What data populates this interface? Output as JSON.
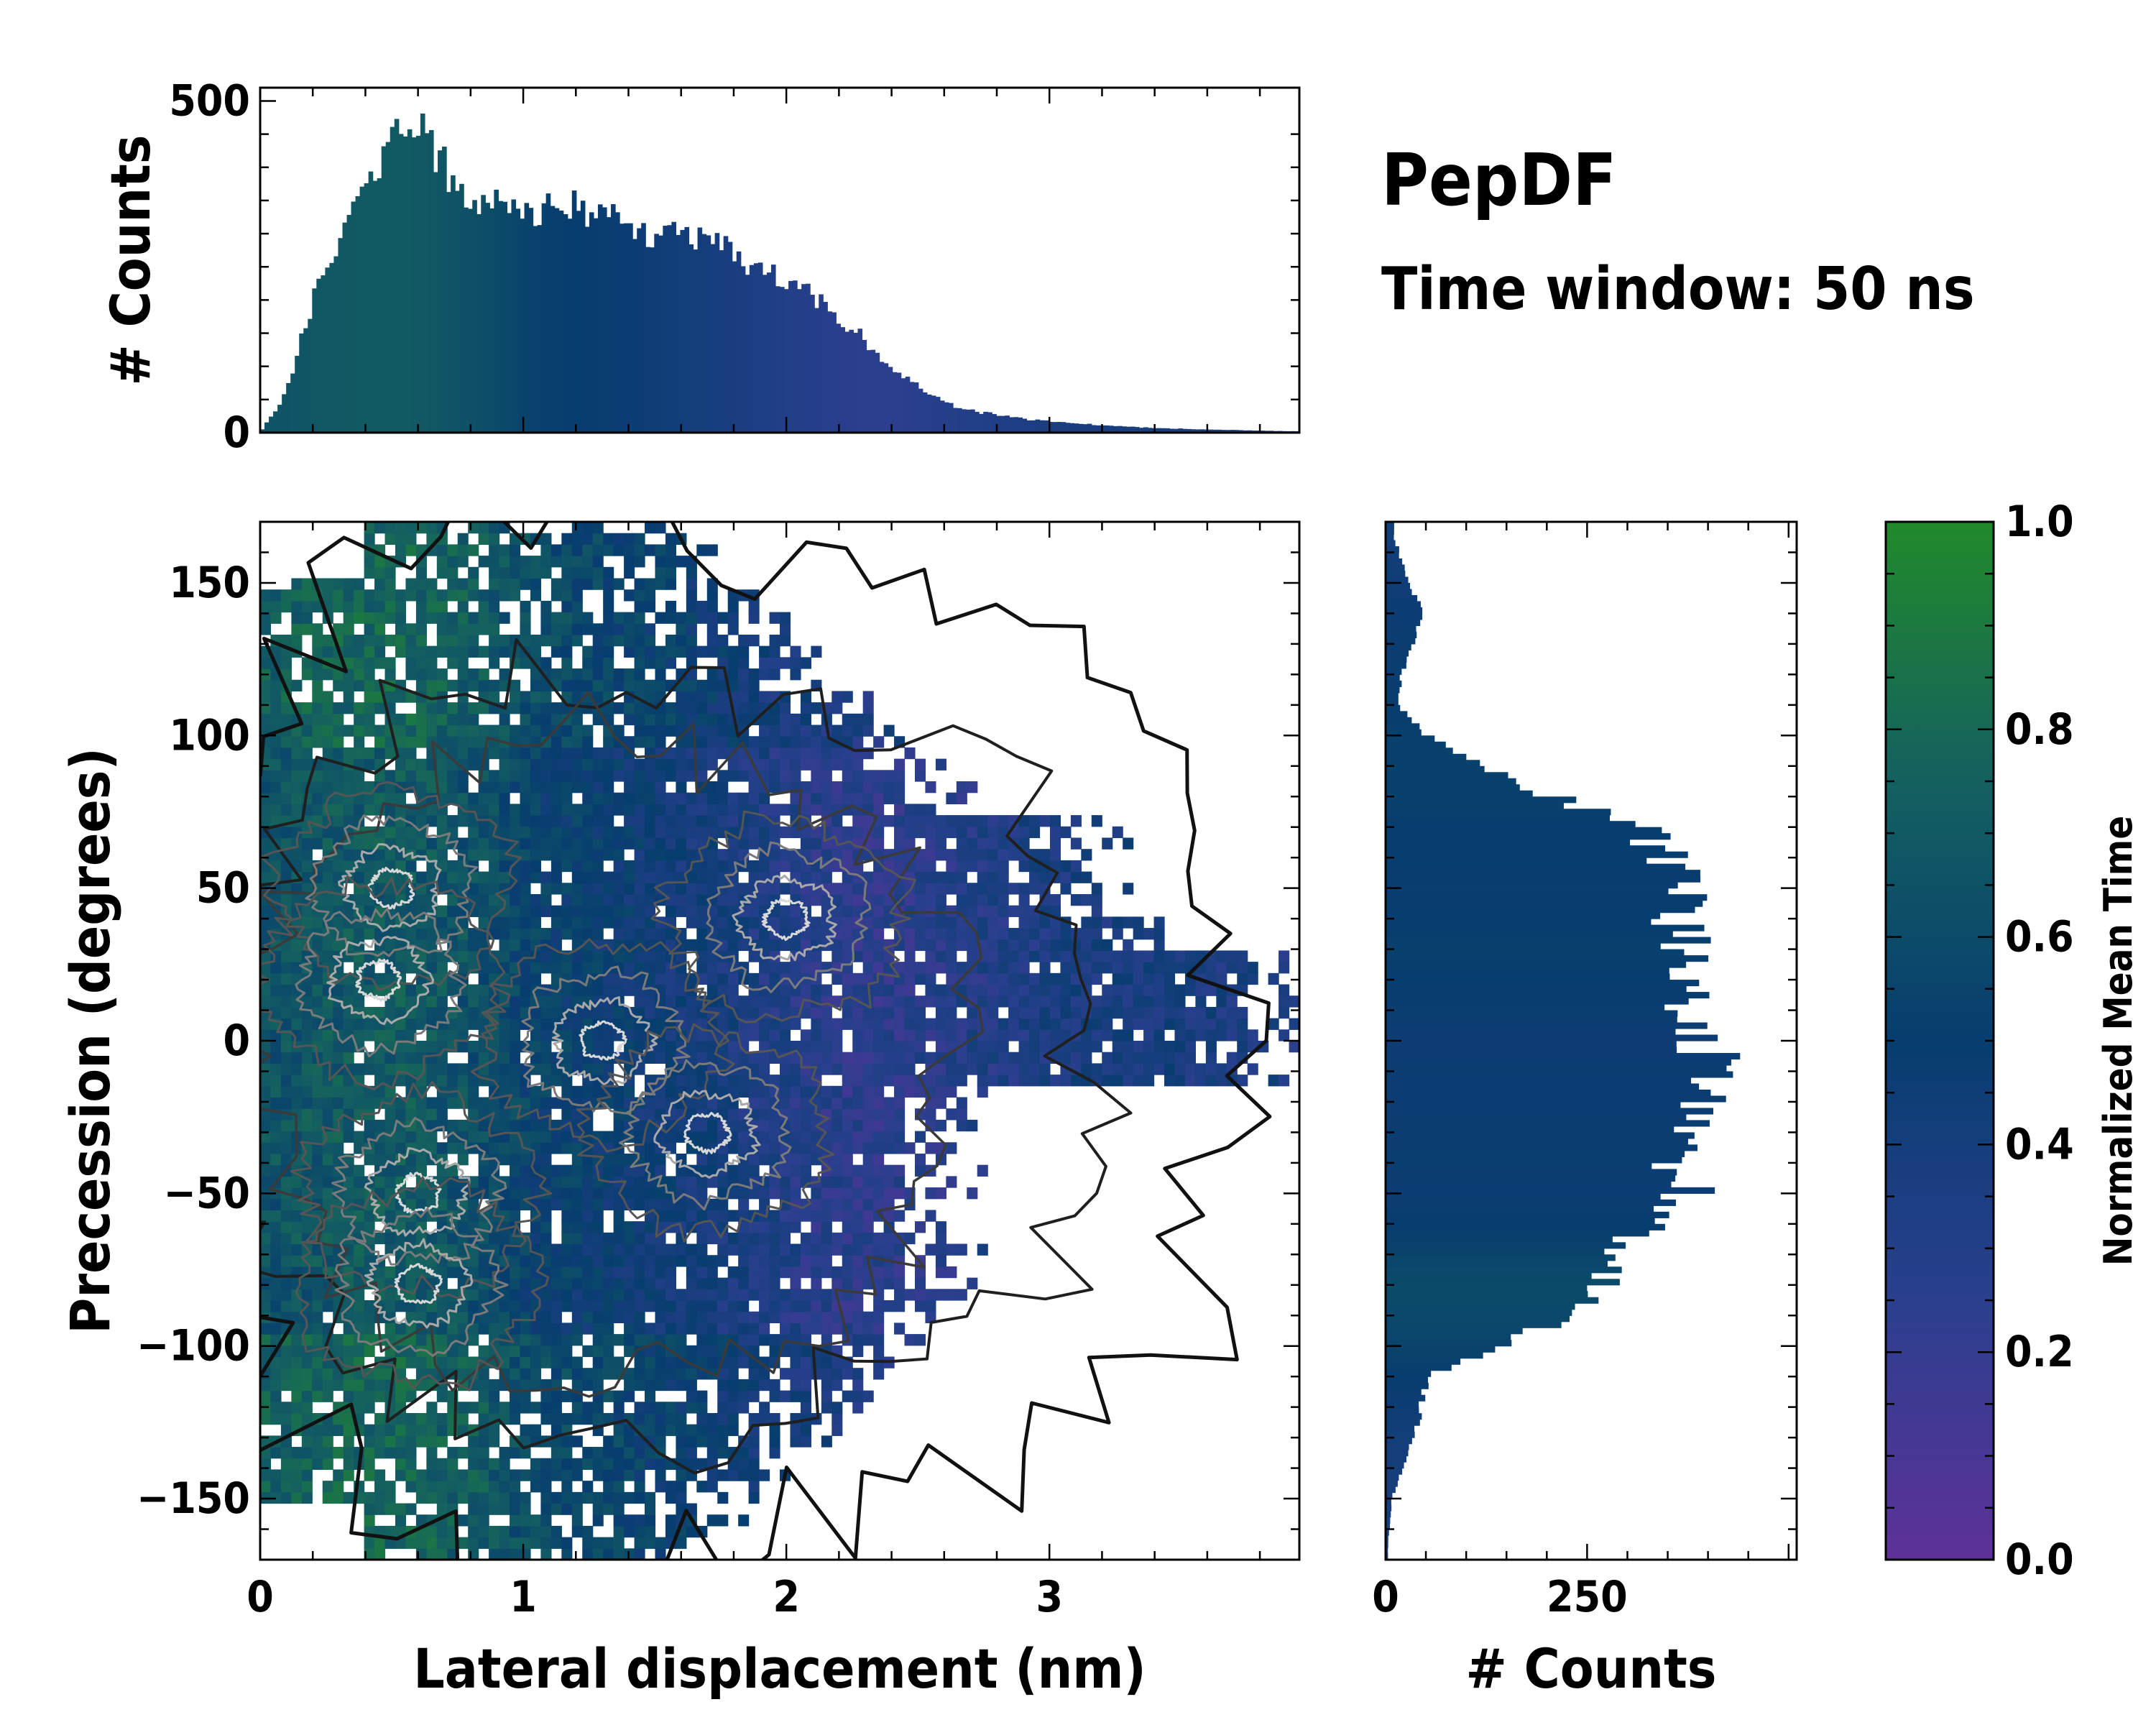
{
  "title": "PepDF",
  "subtitle": "Time window: 50 ns",
  "chart_data": [
    {
      "type": "bar",
      "name": "top-histogram",
      "ylabel": "# Counts",
      "xlim": [
        0,
        3.95
      ],
      "ylim": [
        0,
        520
      ],
      "yticks": [
        0,
        500
      ],
      "color_metric": "Normalized Mean Time",
      "x": [
        0.0,
        0.1,
        0.2,
        0.3,
        0.4,
        0.5,
        0.55,
        0.6,
        0.7,
        0.8,
        0.9,
        1.0,
        1.1,
        1.2,
        1.3,
        1.4,
        1.5,
        1.6,
        1.7,
        1.8,
        1.9,
        2.0,
        2.1,
        2.2,
        2.3,
        2.4,
        2.5,
        2.6,
        2.7,
        2.8,
        2.9,
        3.0,
        3.2,
        3.4,
        3.6,
        3.8,
        3.95
      ],
      "values": [
        0,
        60,
        200,
        300,
        380,
        440,
        470,
        455,
        400,
        360,
        345,
        340,
        335,
        340,
        330,
        305,
        290,
        300,
        290,
        270,
        245,
        225,
        205,
        170,
        140,
        100,
        70,
        45,
        33,
        27,
        21,
        17,
        11,
        7,
        5,
        3,
        2
      ],
      "color_values": [
        0.65,
        0.66,
        0.68,
        0.69,
        0.7,
        0.7,
        0.7,
        0.69,
        0.67,
        0.64,
        0.6,
        0.55,
        0.52,
        0.5,
        0.48,
        0.46,
        0.44,
        0.42,
        0.4,
        0.37,
        0.34,
        0.31,
        0.28,
        0.26,
        0.25,
        0.25,
        0.26,
        0.28,
        0.3,
        0.32,
        0.34,
        0.36,
        0.38,
        0.38,
        0.37,
        0.36,
        0.35
      ]
    },
    {
      "type": "heatmap",
      "name": "joint-distribution",
      "xlabel": "Lateral displacement (nm)",
      "ylabel": "Precession (degrees)",
      "xlim": [
        0,
        3.95
      ],
      "ylim": [
        -170,
        170
      ],
      "xticks": [
        0,
        1,
        2,
        3
      ],
      "yticks": [
        150,
        100,
        50,
        0,
        -50,
        -100,
        -150
      ],
      "color_metric": "Normalized Mean Time",
      "density_centers": [
        [
          0.5,
          50
        ],
        [
          0.6,
          -50
        ],
        [
          0.6,
          -80
        ],
        [
          1.3,
          0
        ],
        [
          0.45,
          20
        ],
        [
          1.7,
          -30
        ],
        [
          2.0,
          40
        ]
      ],
      "contours": true
    },
    {
      "type": "bar",
      "orientation": "horizontal",
      "name": "right-histogram",
      "xlabel": "# Counts",
      "xlim": [
        0,
        510
      ],
      "xticks": [
        0,
        250
      ],
      "ylim": [
        -170,
        170
      ],
      "color_metric": "Normalized Mean Time",
      "y": [
        165,
        150,
        140,
        130,
        120,
        110,
        100,
        90,
        80,
        70,
        60,
        50,
        40,
        30,
        20,
        10,
        0,
        -10,
        -20,
        -30,
        -40,
        -50,
        -60,
        -70,
        -80,
        -90,
        -100,
        -110,
        -120,
        -130,
        -140,
        -150,
        -165
      ],
      "values": [
        10,
        30,
        45,
        35,
        20,
        15,
        50,
        120,
        210,
        310,
        350,
        370,
        360,
        380,
        375,
        370,
        390,
        420,
        400,
        360,
        350,
        380,
        320,
        280,
        280,
        230,
        140,
        50,
        45,
        35,
        20,
        8,
        3
      ],
      "color_values": [
        0.42,
        0.44,
        0.46,
        0.47,
        0.48,
        0.5,
        0.52,
        0.53,
        0.53,
        0.5,
        0.5,
        0.48,
        0.5,
        0.52,
        0.5,
        0.48,
        0.45,
        0.47,
        0.47,
        0.47,
        0.48,
        0.46,
        0.5,
        0.55,
        0.6,
        0.58,
        0.55,
        0.5,
        0.45,
        0.42,
        0.4,
        0.4,
        0.38
      ]
    },
    {
      "type": "colorbar",
      "name": "colorbar",
      "label": "Normalized Mean Time",
      "range": [
        0.0,
        1.0
      ],
      "ticks": [
        "0.0",
        "0.2",
        "0.4",
        "0.6",
        "0.8",
        "1.0"
      ],
      "colormap": [
        "#5e3199",
        "#2a3f8e",
        "#073d6f",
        "#146060",
        "#218a2a"
      ]
    }
  ]
}
